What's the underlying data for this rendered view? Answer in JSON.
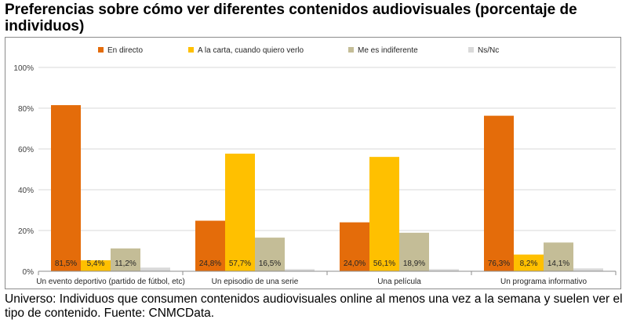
{
  "title": "Preferencias sobre cómo ver diferentes contenidos audiovisuales (porcentaje de individuos)",
  "footnote": "Universo: Individuos que consumen contenidos audiovisuales online al menos una vez a la semana y suelen ver el tipo de contenido. Fuente: CNMCData.",
  "chart_data": {
    "type": "bar",
    "categories": [
      "Un evento deportivo (partido de fútbol, etc)",
      "Un episodio de una serie",
      "Una película",
      "Un programa informativo"
    ],
    "series": [
      {
        "name": "En directo",
        "color": "#e46c0a",
        "values": [
          81.5,
          24.8,
          24.0,
          76.3
        ],
        "labels": [
          "81,5%",
          "24,8%",
          "24,0%",
          "76,3%"
        ]
      },
      {
        "name": "A la carta, cuando quiero verlo",
        "color": "#ffc000",
        "values": [
          5.4,
          57.7,
          56.1,
          8.2
        ],
        "labels": [
          "5,4%",
          "57,7%",
          "56,1%",
          "8,2%"
        ]
      },
      {
        "name": "Me es indiferente",
        "color": "#c4bd97",
        "values": [
          11.2,
          16.5,
          18.9,
          14.1
        ],
        "labels": [
          "11,2%",
          "16,5%",
          "18,9%",
          "14,1%"
        ]
      },
      {
        "name": "Ns/Nc",
        "color": "#d9d9d9",
        "values": [
          1.8,
          1.0,
          1.0,
          1.4
        ]
      }
    ],
    "yticks": [
      "0%",
      "20%",
      "40%",
      "60%",
      "80%",
      "100%"
    ],
    "ylim": [
      0,
      100
    ],
    "legend_position": "top",
    "grid": true
  }
}
